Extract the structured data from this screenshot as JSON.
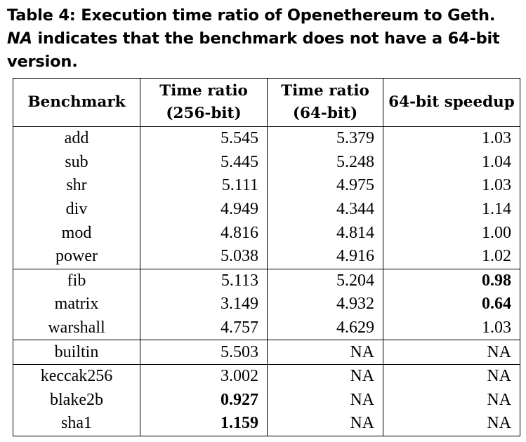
{
  "caption": {
    "label": "Table 4:",
    "text_before": "Execution time ratio of Openethereum to Geth.",
    "em": "NA",
    "text_after": "indicates that the benchmark does not have a 64-bit version."
  },
  "table": {
    "headers": [
      {
        "line1": "Benchmark",
        "line2": ""
      },
      {
        "line1": "Time ratio",
        "line2": "(256-bit)"
      },
      {
        "line1": "Time ratio",
        "line2": "(64-bit)"
      },
      {
        "line1": "64-bit speedup",
        "line2": ""
      }
    ],
    "groups": [
      [
        {
          "name": "add",
          "r256": "5.545",
          "r64": "5.379",
          "speedup": "1.03"
        },
        {
          "name": "sub",
          "r256": "5.445",
          "r64": "5.248",
          "speedup": "1.04"
        },
        {
          "name": "shr",
          "r256": "5.111",
          "r64": "4.975",
          "speedup": "1.03"
        },
        {
          "name": "div",
          "r256": "4.949",
          "r64": "4.344",
          "speedup": "1.14"
        },
        {
          "name": "mod",
          "r256": "4.816",
          "r64": "4.814",
          "speedup": "1.00"
        },
        {
          "name": "power",
          "r256": "5.038",
          "r64": "4.916",
          "speedup": "1.02"
        }
      ],
      [
        {
          "name": "fib",
          "r256": "5.113",
          "r64": "5.204",
          "speedup": "0.98",
          "bold": [
            "speedup"
          ]
        },
        {
          "name": "matrix",
          "r256": "3.149",
          "r64": "4.932",
          "speedup": "0.64",
          "bold": [
            "speedup"
          ]
        },
        {
          "name": "warshall",
          "r256": "4.757",
          "r64": "4.629",
          "speedup": "1.03"
        }
      ],
      [
        {
          "name": "builtin",
          "r256": "5.503",
          "r64": "NA",
          "speedup": "NA"
        }
      ],
      [
        {
          "name": "keccak256",
          "r256": "3.002",
          "r64": "NA",
          "speedup": "NA"
        },
        {
          "name": "blake2b",
          "r256": "0.927",
          "r64": "NA",
          "speedup": "NA",
          "bold": [
            "r256"
          ]
        },
        {
          "name": "sha1",
          "r256": "1.159",
          "r64": "NA",
          "speedup": "NA",
          "bold": [
            "r256"
          ]
        }
      ]
    ]
  }
}
